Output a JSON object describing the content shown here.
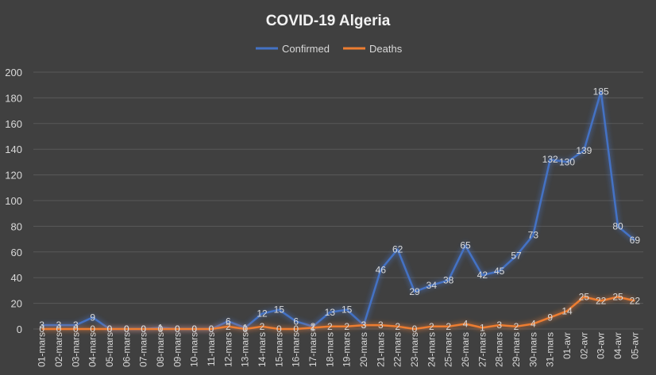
{
  "chart_data": {
    "type": "line",
    "title": "COVID-19 Algeria",
    "xlabel": "",
    "ylabel": "",
    "ylim": [
      0,
      200
    ],
    "yticks": [
      0,
      20,
      40,
      60,
      80,
      100,
      120,
      140,
      160,
      180,
      200
    ],
    "grid": true,
    "legend_position": "top",
    "categories": [
      "01-mars",
      "02-mars",
      "03-mars",
      "04-mars",
      "05-mars",
      "06-mars",
      "07-mars",
      "08-mars",
      "09-mars",
      "10-mars",
      "11-mars",
      "12-mars",
      "13-mars",
      "14-mars",
      "15-mars",
      "16-mars",
      "17-mars",
      "18-mars",
      "19-mars",
      "20-mars",
      "21-mars",
      "22-mars",
      "23-mars",
      "24-mars",
      "25-mars",
      "26-mars",
      "27-mars",
      "28-mars",
      "29-mars",
      "30-mars",
      "31-mars",
      "01-avr",
      "02-avr",
      "03-avr",
      "04-avr",
      "05-avr"
    ],
    "series": [
      {
        "name": "Confirmed",
        "color": "#4472C4",
        "values": [
          3,
          3,
          3,
          9,
          0,
          0,
          0,
          1,
          0,
          0,
          0,
          6,
          1,
          12,
          15,
          6,
          2,
          13,
          15,
          3,
          46,
          62,
          29,
          34,
          38,
          65,
          42,
          45,
          57,
          73,
          132,
          130,
          139,
          185,
          80,
          69
        ]
      },
      {
        "name": "Deaths",
        "color": "#ED7D31",
        "values": [
          0,
          0,
          0,
          0,
          0,
          0,
          0,
          0,
          0,
          0,
          0,
          2,
          0,
          2,
          0,
          0,
          1,
          2,
          2,
          3,
          3,
          2,
          0,
          2,
          2,
          4,
          1,
          3,
          2,
          4,
          9,
          14,
          25,
          22,
          25,
          22
        ]
      }
    ]
  },
  "colors": {
    "background": "#404040",
    "grid": "#595959",
    "text": "#D9D9D9",
    "title": "#F2F2F2"
  }
}
